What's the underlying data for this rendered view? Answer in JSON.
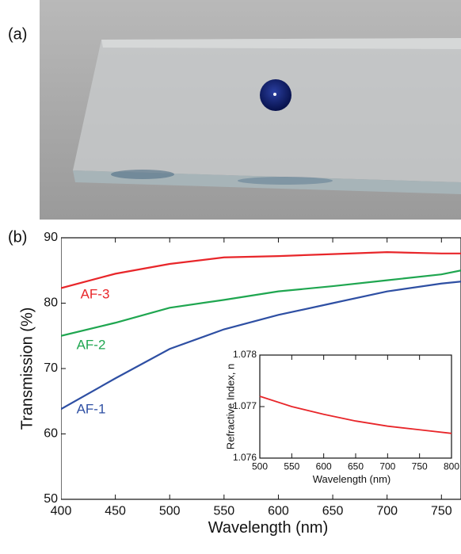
{
  "panel_labels": [
    "(a)",
    "(b)"
  ],
  "chart_data": [
    {
      "type": "line",
      "xlabel": "Wavelength (nm)",
      "ylabel": "Transmission (%)",
      "x": [
        400,
        450,
        500,
        550,
        600,
        650,
        700,
        750,
        768
      ],
      "series": [
        {
          "name": "AF-3",
          "color": "#e8262a",
          "values": [
            82.3,
            84.5,
            86,
            87,
            87.2,
            87.5,
            87.8,
            87.6,
            87.6
          ]
        },
        {
          "name": "AF-2",
          "color": "#1fa650",
          "values": [
            75,
            77,
            79.3,
            80.5,
            81.8,
            82.6,
            83.5,
            84.4,
            85
          ]
        },
        {
          "name": "AF-1",
          "color": "#2e4fa3",
          "values": [
            63.8,
            68.5,
            73,
            76,
            78.2,
            80,
            81.8,
            83,
            83.3
          ]
        }
      ],
      "xlim": [
        400,
        768
      ],
      "ylim": [
        50,
        90
      ],
      "xticks": [
        400,
        450,
        500,
        550,
        600,
        650,
        700,
        750
      ],
      "yticks": [
        50,
        60,
        70,
        80,
        90
      ]
    },
    {
      "type": "line",
      "xlabel": "Wavelength (nm)",
      "ylabel": "Refractive Index, n",
      "x": [
        500,
        550,
        600,
        650,
        700,
        750,
        800
      ],
      "series": [
        {
          "color": "#e8262a",
          "values": [
            1.0772,
            1.077,
            1.07685,
            1.07672,
            1.07662,
            1.07655,
            1.07648
          ]
        }
      ],
      "xlim": [
        500,
        800
      ],
      "ylim": [
        1.076,
        1.078
      ],
      "xticks": [
        500,
        550,
        600,
        650,
        700,
        750,
        800
      ],
      "yticks": [
        1.076,
        1.077,
        1.078
      ]
    }
  ]
}
